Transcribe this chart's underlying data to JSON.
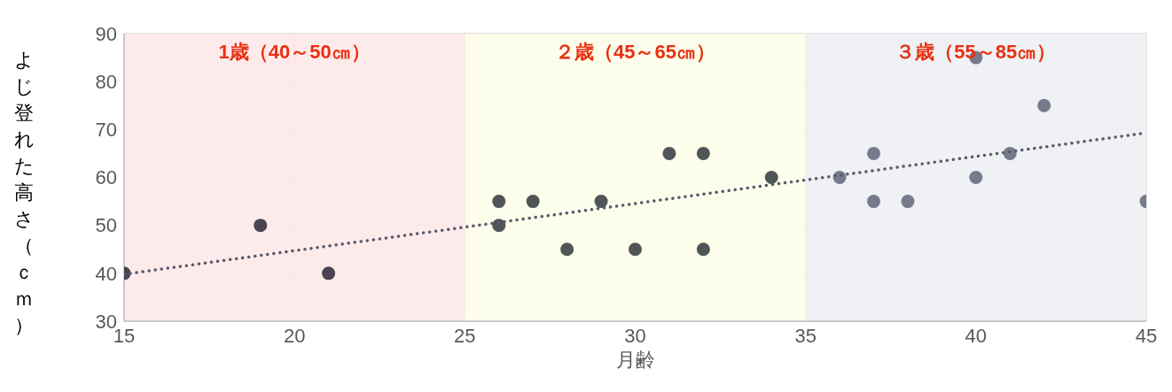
{
  "chart_data": {
    "type": "scatter",
    "xlabel": "月齢",
    "ylabel": "よじ登れた高さ（ｃｍ）",
    "xlim": [
      15,
      45
    ],
    "xticks": [
      15,
      20,
      25,
      30,
      35,
      40,
      45
    ],
    "ylim": [
      30,
      90
    ],
    "yticks": [
      30,
      40,
      50,
      60,
      70,
      80,
      90
    ],
    "grid": true,
    "series": [
      {
        "color": "#4a4453",
        "marker": "circle",
        "x": [
          15,
          19,
          21
        ],
        "values": [
          40,
          50,
          40
        ]
      },
      {
        "color": "#505558",
        "marker": "circle",
        "x": [
          26,
          26,
          27,
          28,
          29,
          30,
          31,
          32,
          32,
          34
        ],
        "values": [
          55,
          50,
          55,
          45,
          55,
          45,
          65,
          65,
          45,
          60
        ]
      },
      {
        "color": "#767b8c",
        "marker": "circle",
        "x": [
          36,
          37,
          37,
          38,
          40,
          40,
          41,
          42,
          45
        ],
        "values": [
          60,
          65,
          55,
          55,
          85,
          60,
          65,
          75,
          55
        ]
      },
      {
        "type": "line",
        "color": "#5a5b6b",
        "line_style": "dotted",
        "x": [
          15,
          45
        ],
        "values": [
          39.8,
          69.3
        ]
      }
    ],
    "bands": [
      {
        "axis": "x",
        "from": 15,
        "to": 25,
        "label": "1歳（40～50㎝）",
        "color": "#fde9e9"
      },
      {
        "axis": "x",
        "from": 25,
        "to": 35,
        "label": "２歳（45～65㎝）",
        "color": "#fdfde9"
      },
      {
        "axis": "x",
        "from": 35,
        "to": 45,
        "label": "３歳（55～85㎝）",
        "color": "#eeeff3"
      }
    ]
  }
}
